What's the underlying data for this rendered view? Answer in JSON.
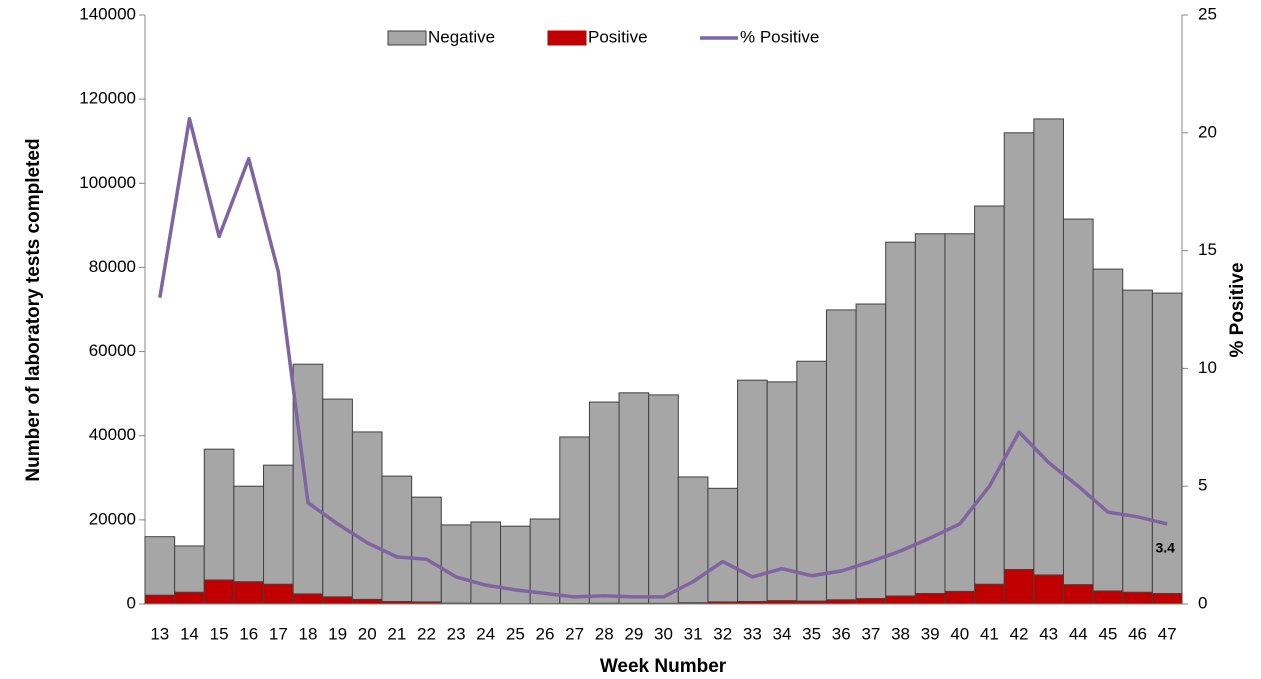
{
  "chart_data": {
    "type": "stacked-bar-line",
    "y_label": "Number of laboratory tests completed",
    "y2_label": "% Positive",
    "x_label": "Week Number",
    "categories": [
      "13",
      "14",
      "15",
      "16",
      "17",
      "18",
      "19",
      "20",
      "21",
      "22",
      "23",
      "24",
      "25",
      "26",
      "27",
      "28",
      "29",
      "30",
      "31",
      "32",
      "33",
      "34",
      "35",
      "36",
      "37",
      "38",
      "39",
      "40",
      "41",
      "42",
      "43",
      "44",
      "45",
      "46",
      "47"
    ],
    "series": [
      {
        "name": "Negative",
        "color": "#a6a6a6",
        "type": "bar",
        "values": [
          13900,
          11000,
          31100,
          22700,
          28300,
          54600,
          47000,
          39800,
          29800,
          24900,
          18600,
          19350,
          18400,
          20100,
          39580,
          47830,
          50050,
          49550,
          29910,
          27000,
          52600,
          52000,
          57000,
          68900,
          70000,
          84100,
          85500,
          85000,
          89900,
          103800,
          108400,
          86900,
          76500,
          71800,
          71400
        ]
      },
      {
        "name": "Positive",
        "color": "#c00000",
        "type": "bar",
        "values": [
          2100,
          2800,
          5700,
          5300,
          4700,
          2400,
          1700,
          1100,
          600,
          500,
          200,
          150,
          100,
          100,
          120,
          170,
          150,
          150,
          290,
          500,
          600,
          800,
          700,
          1000,
          1300,
          1900,
          2500,
          3000,
          4700,
          8200,
          6900,
          4600,
          3100,
          2800,
          2500
        ]
      },
      {
        "name": "% Positive",
        "color": "#8064a2",
        "type": "line",
        "axis": "y2",
        "values": [
          13.0,
          20.6,
          15.6,
          18.9,
          14.1,
          4.3,
          3.4,
          2.6,
          2.0,
          1.9,
          1.15,
          0.8,
          0.6,
          0.45,
          0.3,
          0.35,
          0.3,
          0.3,
          0.95,
          1.8,
          1.15,
          1.5,
          1.2,
          1.4,
          1.8,
          2.25,
          2.8,
          3.4,
          5.0,
          7.3,
          6.0,
          5.0,
          3.9,
          3.7,
          3.4
        ],
        "value_labels": [
          null,
          null,
          null,
          null,
          null,
          null,
          null,
          null,
          null,
          null,
          null,
          null,
          null,
          null,
          null,
          null,
          null,
          null,
          null,
          null,
          null,
          null,
          null,
          null,
          null,
          null,
          null,
          null,
          null,
          null,
          null,
          null,
          null,
          null,
          "3.4"
        ]
      }
    ],
    "ylim": [
      0,
      140000
    ],
    "yticks": [
      0,
      20000,
      40000,
      60000,
      80000,
      100000,
      120000,
      140000
    ],
    "y2lim": [
      0,
      25
    ],
    "y2ticks": [
      0,
      5,
      10,
      15,
      20,
      25
    ],
    "legend": "top",
    "grid": false
  }
}
